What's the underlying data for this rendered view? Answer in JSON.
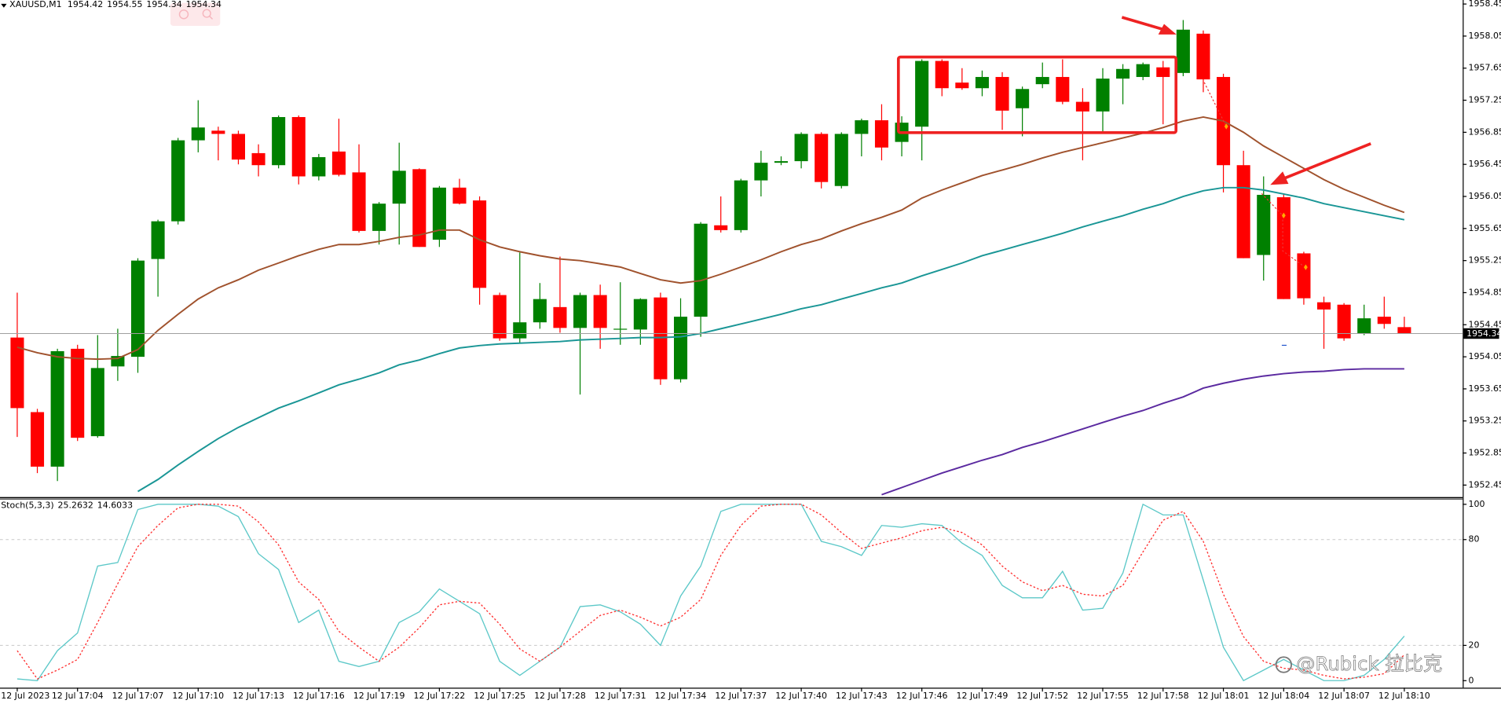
{
  "chart_data": [
    {
      "type": "candlestick",
      "title": "XAUUSD,M1",
      "categories": [
        "12 Jul 2023",
        null,
        null,
        "12 Jul 17:04",
        null,
        null,
        "12 Jul 17:07",
        null,
        null,
        "12 Jul 17:10",
        null,
        null,
        "12 Jul 17:13",
        null,
        null,
        "12 Jul 17:16",
        null,
        null,
        "12 Jul 17:19",
        null,
        null,
        "12 Jul 17:22",
        null,
        null,
        "12 Jul 17:25",
        null,
        null,
        "12 Jul 17:28",
        null,
        null,
        "12 Jul 17:31",
        null,
        null,
        "12 Jul 17:34",
        null,
        null,
        "12 Jul 17:37",
        null,
        null,
        "12 Jul 17:40",
        null,
        null,
        "12 Jul 17:43",
        null,
        null,
        "12 Jul 17:46",
        null,
        null,
        "12 Jul 17:49",
        null,
        null,
        "12 Jul 17:52",
        null,
        null,
        "12 Jul 17:55",
        null,
        null,
        "12 Jul 17:58",
        null,
        null,
        "12 Jul 18:01",
        null,
        null,
        "12 Jul 18:04",
        null,
        null,
        "12 Jul 18:07",
        null,
        null,
        "12 Jul 18:10"
      ],
      "open": [
        1954.29,
        1953.36,
        1952.68,
        1954.15,
        1953.06,
        1953.93,
        1954.05,
        1955.27,
        1955.74,
        1956.75,
        1956.87,
        1956.83,
        1956.59,
        1956.44,
        1957.04,
        1956.3,
        1956.61,
        1956.35,
        1955.62,
        1955.96,
        1956.39,
        1955.51,
        1956.16,
        1956.0,
        1954.82,
        1954.28,
        1954.48,
        1954.67,
        1954.41,
        1954.82,
        1954.39,
        1954.39,
        1954.79,
        1953.77,
        1954.55,
        1955.69,
        1955.63,
        1956.25,
        1956.47,
        1956.49,
        1956.83,
        1956.18,
        1956.83,
        1957.0,
        1956.73,
        1956.92,
        1957.74,
        1957.47,
        1957.4,
        1957.54,
        1957.15,
        1957.45,
        1957.54,
        1957.23,
        1957.11,
        1957.52,
        1957.54,
        1957.66,
        1957.59,
        1958.08,
        1957.54,
        1956.44,
        1955.32,
        1956.04,
        1955.34,
        1954.73,
        1954.7,
        1954.34,
        1954.55,
        1954.42
      ],
      "high": [
        1954.85,
        1953.4,
        1954.15,
        1954.2,
        1954.32,
        1954.4,
        1955.28,
        1955.76,
        1956.78,
        1957.25,
        1956.92,
        1956.87,
        1956.7,
        1957.06,
        1957.06,
        1956.58,
        1957.02,
        1956.7,
        1955.98,
        1956.72,
        1956.4,
        1956.18,
        1956.27,
        1956.05,
        1954.85,
        1955.35,
        1954.97,
        1955.3,
        1954.85,
        1954.95,
        1954.98,
        1954.78,
        1954.85,
        1954.78,
        1955.73,
        1956.05,
        1956.27,
        1956.62,
        1956.55,
        1956.85,
        1956.85,
        1956.85,
        1957.02,
        1957.2,
        1957.05,
        1957.76,
        1957.76,
        1957.65,
        1957.62,
        1957.6,
        1957.42,
        1957.72,
        1957.76,
        1957.4,
        1957.65,
        1957.7,
        1957.72,
        1957.74,
        1958.25,
        1958.12,
        1957.58,
        1956.62,
        1956.3,
        1956.08,
        1955.36,
        1954.8,
        1954.72,
        1954.7,
        1954.8,
        1954.55
      ],
      "low": [
        1953.05,
        1952.6,
        1952.5,
        1953.0,
        1953.04,
        1953.75,
        1953.85,
        1954.8,
        1955.7,
        1956.6,
        1956.5,
        1956.45,
        1956.3,
        1956.4,
        1956.2,
        1956.25,
        1956.3,
        1955.6,
        1955.45,
        1955.45,
        1955.42,
        1955.42,
        1955.95,
        1954.7,
        1954.25,
        1954.22,
        1954.4,
        1954.35,
        1953.58,
        1954.15,
        1954.2,
        1954.2,
        1953.7,
        1953.73,
        1954.3,
        1955.6,
        1955.6,
        1956.05,
        1956.44,
        1956.4,
        1956.15,
        1956.15,
        1956.55,
        1956.5,
        1956.55,
        1956.5,
        1957.3,
        1957.38,
        1957.3,
        1956.88,
        1956.8,
        1957.4,
        1957.2,
        1956.5,
        1956.85,
        1957.2,
        1957.5,
        1956.95,
        1957.55,
        1957.35,
        1956.1,
        1955.28,
        1955.0,
        1954.77,
        1954.7,
        1954.15,
        1954.25,
        1954.32,
        1954.4,
        1954.34
      ],
      "close": [
        1953.41,
        1952.68,
        1954.12,
        1953.04,
        1953.91,
        1954.06,
        1955.25,
        1955.74,
        1956.75,
        1956.91,
        1956.83,
        1956.51,
        1956.44,
        1957.04,
        1956.3,
        1956.54,
        1956.32,
        1955.62,
        1955.96,
        1956.37,
        1955.42,
        1956.16,
        1955.96,
        1954.91,
        1954.28,
        1954.48,
        1954.77,
        1954.41,
        1954.82,
        1954.41,
        1954.4,
        1954.77,
        1953.77,
        1954.55,
        1955.71,
        1955.63,
        1956.25,
        1956.47,
        1956.49,
        1956.83,
        1956.23,
        1956.83,
        1957.0,
        1956.66,
        1956.97,
        1957.74,
        1957.4,
        1957.4,
        1957.54,
        1957.12,
        1957.39,
        1957.54,
        1957.23,
        1957.11,
        1957.52,
        1957.64,
        1957.7,
        1957.54,
        1958.13,
        1957.51,
        1956.44,
        1955.28,
        1956.07,
        1954.77,
        1954.78,
        1954.64,
        1954.28,
        1954.53,
        1954.46,
        1954.34
      ],
      "up_color": "#008000",
      "down_color": "#ff0000",
      "series": [
        {
          "color": "#a0522d",
          "values": [
            1954.17,
            1954.1,
            1954.05,
            1954.03,
            1954.02,
            1954.03,
            1954.14,
            1954.38,
            1954.58,
            1954.77,
            1954.91,
            1955.01,
            1955.13,
            1955.22,
            1955.31,
            1955.39,
            1955.45,
            1955.45,
            1955.49,
            1955.54,
            1955.57,
            1955.63,
            1955.63,
            1955.51,
            1955.42,
            1955.36,
            1955.31,
            1955.27,
            1955.25,
            1955.21,
            1955.17,
            1955.09,
            1955.01,
            1954.97,
            1955.0,
            1955.08,
            1955.17,
            1955.26,
            1955.36,
            1955.45,
            1955.52,
            1955.62,
            1955.71,
            1955.79,
            1955.88,
            1956.03,
            1956.13,
            1956.22,
            1956.31,
            1956.38,
            1956.45,
            1956.53,
            1956.6,
            1956.66,
            1956.72,
            1956.78,
            1956.84,
            1956.91,
            1956.99,
            1957.04,
            1956.99,
            1956.85,
            1956.68,
            1956.54,
            1956.4,
            1956.26,
            1956.14,
            1956.04,
            1955.94,
            1955.85
          ]
        },
        {
          "color": "#1a9696",
          "values": [
            null,
            null,
            null,
            null,
            null,
            null,
            1952.37,
            1952.52,
            1952.7,
            1952.87,
            1953.03,
            1953.17,
            1953.29,
            1953.41,
            1953.5,
            1953.6,
            1953.7,
            1953.77,
            1953.85,
            1953.95,
            1954.01,
            1954.09,
            1954.16,
            1954.19,
            1954.21,
            1954.22,
            1954.23,
            1954.24,
            1954.26,
            1954.27,
            1954.28,
            1954.29,
            1954.29,
            1954.3,
            1954.34,
            1954.4,
            1954.46,
            1954.52,
            1954.58,
            1954.65,
            1954.7,
            1954.77,
            1954.84,
            1954.91,
            1954.97,
            1955.06,
            1955.14,
            1955.22,
            1955.31,
            1955.38,
            1955.45,
            1955.52,
            1955.59,
            1955.67,
            1955.74,
            1955.81,
            1955.89,
            1955.96,
            1956.05,
            1956.12,
            1956.16,
            1956.16,
            1956.13,
            1956.08,
            1956.03,
            1955.96,
            1955.91,
            1955.86,
            1955.81,
            1955.76
          ]
        },
        {
          "color": "#5b2aa0",
          "values": [
            null,
            null,
            null,
            null,
            null,
            null,
            null,
            null,
            null,
            null,
            null,
            null,
            null,
            null,
            null,
            null,
            null,
            null,
            null,
            null,
            null,
            null,
            null,
            null,
            null,
            null,
            null,
            null,
            null,
            null,
            null,
            null,
            null,
            null,
            null,
            null,
            null,
            null,
            null,
            null,
            null,
            null,
            null,
            1952.33,
            1952.42,
            1952.51,
            1952.6,
            1952.68,
            1952.76,
            1952.83,
            1952.92,
            1952.99,
            1953.07,
            1953.15,
            1953.23,
            1953.31,
            1953.38,
            1953.47,
            1953.55,
            1953.66,
            1953.72,
            1953.77,
            1953.81,
            1953.84,
            1953.86,
            1953.87,
            1953.89,
            1953.9,
            1953.9,
            1953.9
          ]
        }
      ],
      "ylim": [
        1952.3,
        1958.5
      ],
      "yticks": [
        1958.45,
        1958.05,
        1957.65,
        1957.25,
        1956.85,
        1956.45,
        1956.05,
        1955.65,
        1955.25,
        1954.85,
        1954.45,
        1954.05,
        1953.65,
        1953.25,
        1952.85,
        1952.45
      ]
    },
    {
      "type": "line",
      "title": "Stoch(5,3,3)",
      "series": [
        {
          "color": "#5cc8c8",
          "style": "solid",
          "values": [
            1,
            0,
            17,
            27,
            65,
            67,
            97,
            100,
            100,
            100,
            99,
            93,
            72,
            63,
            33,
            40,
            11,
            8,
            11,
            33,
            39,
            52,
            45,
            38,
            11,
            3,
            11,
            19,
            42,
            43,
            39,
            32,
            20,
            48,
            65,
            96,
            100,
            100,
            100,
            100,
            79,
            76,
            71,
            88,
            87,
            89,
            88,
            78,
            71,
            54,
            47,
            47,
            62,
            40,
            41,
            61,
            100,
            94,
            94,
            57,
            19,
            0,
            6,
            12,
            6,
            0,
            0,
            3,
            12,
            25.2632
          ]
        },
        {
          "color": "#ff3030",
          "style": "dashed",
          "values": [
            17,
            1,
            6,
            12,
            33,
            55,
            76,
            88,
            98,
            100,
            100,
            99,
            90,
            77,
            56,
            46,
            28,
            19,
            11,
            19,
            30,
            43,
            45,
            44,
            32,
            18,
            11,
            19,
            28,
            37,
            40,
            36,
            31,
            36,
            46,
            71,
            88,
            99,
            100,
            100,
            94,
            84,
            75,
            78,
            81,
            85,
            87,
            84,
            77,
            65,
            56,
            51,
            54,
            49,
            48,
            54,
            73,
            91,
            96,
            79,
            49,
            25,
            11,
            7,
            6,
            3,
            1,
            2,
            4,
            14.6033
          ]
        }
      ],
      "ylim": [
        -4,
        103
      ],
      "yticks": [
        100,
        80,
        20,
        0
      ]
    }
  ],
  "watermark": "@Rubick 拉比克"
}
